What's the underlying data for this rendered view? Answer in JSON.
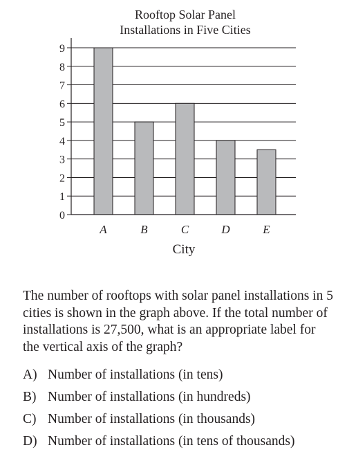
{
  "chart_data": {
    "type": "bar",
    "title": [
      "Rooftop Solar Panel",
      "Installations in Five Cities"
    ],
    "xlabel": "City",
    "ylabel": "",
    "categories": [
      "A",
      "B",
      "C",
      "D",
      "E"
    ],
    "values": [
      9,
      5,
      6,
      4,
      3.5
    ],
    "ylim": [
      0,
      9
    ],
    "yticks": [
      "0",
      "1",
      "2",
      "3",
      "4",
      "5",
      "6",
      "7",
      "8",
      "9"
    ],
    "grid": true,
    "bar_color": "#b9babc"
  },
  "question": {
    "text": "The number of rooftops with solar panel installations in 5 cities is shown in the graph above.  If the total number of installations is 27,500, what is an appropriate label for the vertical axis of the graph?",
    "choices": [
      {
        "letter": "A)",
        "text": "Number of installations (in tens)"
      },
      {
        "letter": "B)",
        "text": "Number of installations (in hundreds)"
      },
      {
        "letter": "C)",
        "text": "Number of installations (in thousands)"
      },
      {
        "letter": "D)",
        "text": "Number of installations (in tens of thousands)"
      }
    ]
  }
}
